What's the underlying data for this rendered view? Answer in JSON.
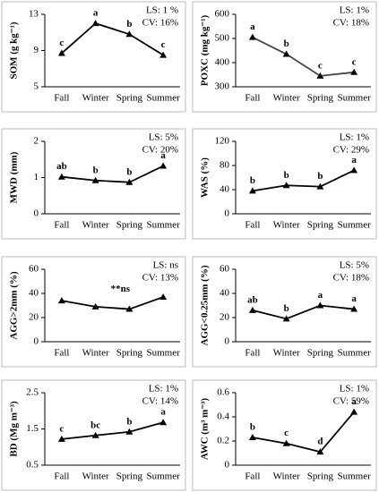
{
  "chart_data": [
    {
      "type": "line",
      "ylabel": "SOM (g kg⁻¹)",
      "categories": [
        "Fall",
        "Winter",
        "Spring",
        "Summer"
      ],
      "values": [
        8.7,
        12,
        10.8,
        8.5
      ],
      "letters": [
        "c",
        "a",
        "b",
        "c"
      ],
      "stats": [
        "LS: 1 %",
        "CV: 16%"
      ],
      "ylim": [
        5,
        13
      ],
      "yticks": [
        5,
        9,
        13
      ],
      "color": "#000000"
    },
    {
      "type": "line",
      "ylabel": "POXC (mg kg⁻¹)",
      "categories": [
        "Fall",
        "Winter",
        "Spring",
        "Summer"
      ],
      "values": [
        505,
        435,
        345,
        360
      ],
      "letters": [
        "a",
        "b",
        "c",
        "c"
      ],
      "stats": [
        "LS: 1%",
        "CV: 18%"
      ],
      "ylim": [
        300,
        600
      ],
      "yticks": [
        300,
        400,
        500,
        600
      ],
      "color": "#444444"
    },
    {
      "type": "line",
      "ylabel": "MWD (mm)",
      "categories": [
        "Fall",
        "Winter",
        "Spring",
        "Summer"
      ],
      "values": [
        1.02,
        0.92,
        0.87,
        1.32
      ],
      "letters": [
        "ab",
        "b",
        "b",
        "a"
      ],
      "stats": [
        "LS: 5%",
        "CV: 20%"
      ],
      "ylim": [
        0,
        2
      ],
      "yticks": [
        0,
        1,
        2
      ],
      "color": "#000000"
    },
    {
      "type": "line",
      "ylabel": "WAS (%)",
      "categories": [
        "Fall",
        "Winter",
        "Spring",
        "Summer"
      ],
      "values": [
        38,
        47,
        45,
        72
      ],
      "letters": [
        "b",
        "b",
        "b",
        "a"
      ],
      "stats": [
        "LS: 1%",
        "CV: 29%"
      ],
      "ylim": [
        0,
        120
      ],
      "yticks": [
        0,
        40,
        80,
        120
      ],
      "color": "#000000"
    },
    {
      "type": "line",
      "ylabel": "AGG>2mm (%)",
      "categories": [
        "Fall",
        "Winter",
        "Spring",
        "Summer"
      ],
      "values": [
        34,
        29,
        27,
        37
      ],
      "note": "**ns",
      "stats": [
        "LS: ns",
        "CV: 13%"
      ],
      "ylim": [
        0,
        60
      ],
      "yticks": [
        0,
        20,
        40,
        60
      ],
      "color": "#000000"
    },
    {
      "type": "line",
      "ylabel": "AGG<0.25mm (%)",
      "categories": [
        "Fall",
        "Winter",
        "Spring",
        "Summer"
      ],
      "values": [
        26,
        19,
        30,
        27
      ],
      "letters": [
        "ab",
        "b",
        "a",
        "a"
      ],
      "stats": [
        "LS: 5%",
        "CV: 18%"
      ],
      "ylim": [
        0,
        60
      ],
      "yticks": [
        0,
        20,
        40,
        60
      ],
      "color": "#000000"
    },
    {
      "type": "line",
      "ylabel": "BD (Mg m⁻³)",
      "categories": [
        "Fall",
        "Winter",
        "Spring",
        "Summer"
      ],
      "values": [
        1.22,
        1.32,
        1.42,
        1.68
      ],
      "letters": [
        "c",
        "bc",
        "b",
        "a"
      ],
      "stats": [
        "LS: 1%",
        "CV: 14%"
      ],
      "ylim": [
        0.5,
        2.5
      ],
      "yticks": [
        0.5,
        1.5,
        2.5
      ],
      "color": "#000000"
    },
    {
      "type": "line",
      "ylabel": "AWC (m³ m⁻³)",
      "categories": [
        "Fall",
        "Winter",
        "Spring",
        "Summer"
      ],
      "values": [
        0.23,
        0.18,
        0.11,
        0.44
      ],
      "letters": [
        "b",
        "c",
        "d",
        "a"
      ],
      "stats": [
        "LS: 1%",
        "CV: 59%"
      ],
      "ylim": [
        0,
        0.6
      ],
      "yticks": [
        0,
        0.2,
        0.4,
        0.6
      ],
      "color": "#000000"
    }
  ]
}
